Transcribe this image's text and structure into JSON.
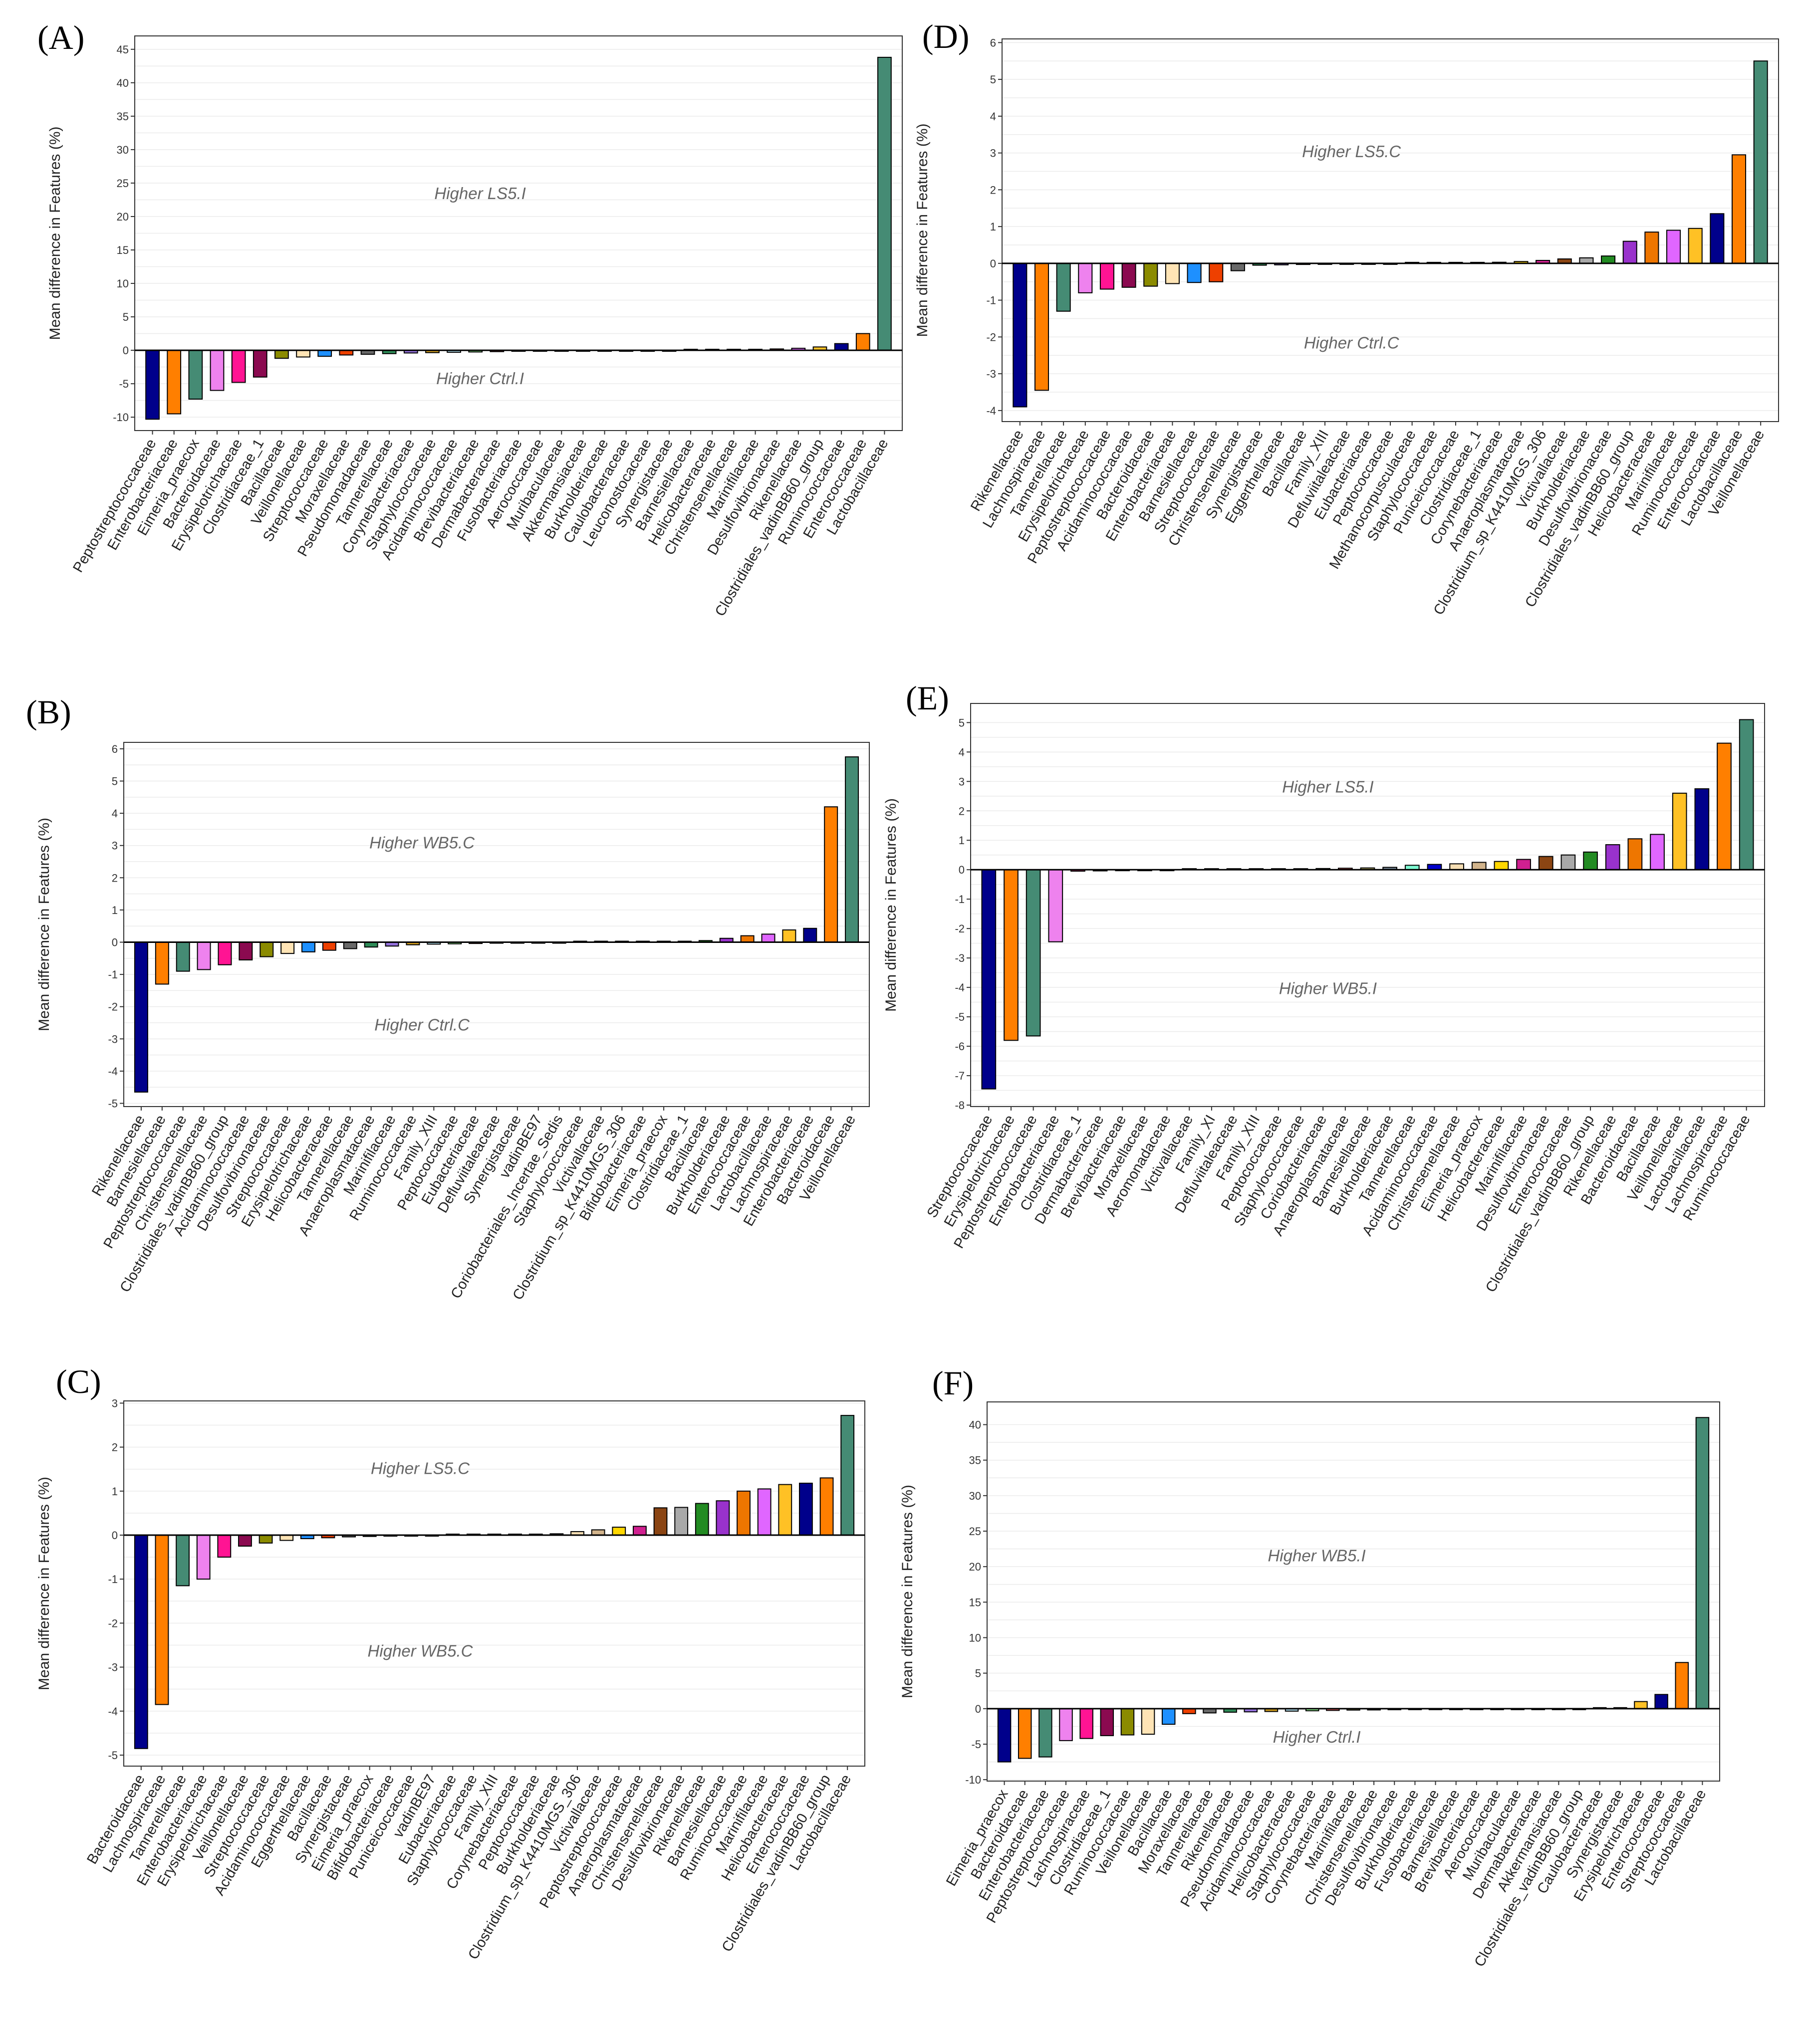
{
  "colors": [
    "#00008B",
    "#FF7F00",
    "#458B74",
    "#EE82EE",
    "#FF1493",
    "#8B0A50",
    "#8B8B00",
    "#FFE4B5",
    "#1E90FF",
    "#EE4000",
    "#696969",
    "#2E8B57",
    "#9370DB",
    "#CD9B1D",
    "#ADD8E6",
    "#98FB98",
    "#FF6A6A",
    "#BDB76B",
    "#708090",
    "#7FFFD4",
    "#0000CD",
    "#F5DEB3",
    "#D2B48C",
    "#FFD700",
    "#D02090",
    "#8B4513",
    "#A9A9A9",
    "#228B22",
    "#9932CC",
    "#EE7600",
    "#E066FF",
    "#FFC125"
  ],
  "chart_data": [
    {
      "id": "A",
      "type": "bar",
      "panel_label": "(A)",
      "ylabel": "Mean difference in Features (%)",
      "ylim": [
        -12,
        47
      ],
      "yticks": [
        -10,
        -5,
        0,
        5,
        10,
        15,
        20,
        25,
        30,
        35,
        40,
        45
      ],
      "upper_annotation": "Higher LS5.I",
      "lower_annotation": "Higher Ctrl.I",
      "categories": [
        "Peptostreptococcaceae",
        "Enterobacteriaceae",
        "Eimeria_praecox",
        "Bacteroidaceae",
        "Erysipelotrichaceae",
        "Clostridiaceae_1",
        "Bacillaceae",
        "Veillonellaceae",
        "Streptococcaceae",
        "Moraxellaceae",
        "Pseudomonadaceae",
        "Tannerellaceae",
        "Corynebacteriaceae",
        "Staphylococcaceae",
        "Acidaminococcaceae",
        "Brevibacteriaceae",
        "Dermabacteraceae",
        "Fusobacteriaceae",
        "Aerococcaceae",
        "Muribaculaceae",
        "Akkermansiaceae",
        "Burkholderiaceae",
        "Caulobacteraceae",
        "Leuconostocaceae",
        "Synergistaceae",
        "Barnesiellaceae",
        "Helicobacteraceae",
        "Christensenellaceae",
        "Marinifilaceae",
        "Desulfovibrionaceae",
        "Rikenellaceae",
        "Clostridiales_vadinBB60_group",
        "Ruminococcaceae",
        "Enterococcaceae",
        "Lactobacillaceae"
      ],
      "values": [
        -10.3,
        -9.5,
        -7.3,
        -6.0,
        -4.8,
        -4.0,
        -1.2,
        -1.0,
        -0.9,
        -0.7,
        -0.6,
        -0.5,
        -0.4,
        -0.35,
        -0.3,
        -0.25,
        -0.2,
        -0.15,
        -0.1,
        -0.08,
        -0.06,
        -0.05,
        -0.04,
        -0.03,
        -0.02,
        0.02,
        0.03,
        0.05,
        0.1,
        0.2,
        0.3,
        0.5,
        1.0,
        2.5,
        43.8
      ]
    },
    {
      "id": "B",
      "type": "bar",
      "panel_label": "(B)",
      "ylabel": "Mean difference in Features (%)",
      "ylim": [
        -5.1,
        6.2
      ],
      "yticks": [
        -5,
        -4,
        -3,
        -2,
        -1,
        0,
        1,
        2,
        3,
        4,
        5,
        6
      ],
      "upper_annotation": "Higher WB5.C",
      "lower_annotation": "Higher Ctrl.C",
      "categories": [
        "Rikenellaceae",
        "Barnesiellaceae",
        "Peptostreptococcaceae",
        "Christensenellaceae",
        "Clostridiales_vadinBB60_group",
        "Acidaminococcaceae",
        "Desulfovibrionaceae",
        "Streptococcaceae",
        "Erysipelotrichaceae",
        "Helicobacteraceae",
        "Tannerellaceae",
        "Anaeroplasmataceae",
        "Marinifilaceae",
        "Ruminococcaceae",
        "Family_XIII",
        "Peptococcaceae",
        "Eubacteriaceae",
        "Defluviitaleaceae",
        "Synergistaceae",
        "vadinBE97",
        "Coriobacteriales_Incertae_Sedis",
        "Staphylococcaceae",
        "Victivallaceae",
        "Clostridium_sp_K4410MGS_306",
        "Bifidobacteriaceae",
        "Eimeria_praecox",
        "Clostridiaceae_1",
        "Bacillaceae",
        "Burkholderiaceae",
        "Enterococcaceae",
        "Lactobacillaceae",
        "Lachnospiraceae",
        "Enterobacteriaceae",
        "Bacteroidaceae",
        "Veillonellaceae"
      ],
      "values": [
        -4.65,
        -1.3,
        -0.9,
        -0.85,
        -0.7,
        -0.55,
        -0.45,
        -0.35,
        -0.3,
        -0.25,
        -0.2,
        -0.15,
        -0.12,
        -0.08,
        -0.06,
        -0.05,
        -0.04,
        -0.03,
        -0.02,
        -0.01,
        -0.01,
        0.0,
        0.0,
        0.0,
        0.01,
        0.01,
        0.02,
        0.05,
        0.12,
        0.2,
        0.25,
        0.38,
        0.43,
        4.2,
        5.75
      ]
    },
    {
      "id": "C",
      "type": "bar",
      "panel_label": "(C)",
      "ylabel": "Mean difference in Features (%)",
      "ylim": [
        -5.25,
        3.05
      ],
      "yticks": [
        -5,
        -4,
        -3,
        -2,
        -1,
        0,
        1,
        2,
        3
      ],
      "upper_annotation": "Higher LS5.C",
      "lower_annotation": "Higher WB5.C",
      "categories": [
        "Bacteroidaceae",
        "Lachnospiraceae",
        "Tannerellaceae",
        "Enterobacteriaceae",
        "Erysipelotrichaceae",
        "Veillonellaceae",
        "Streptococcaceae",
        "Acidaminococcaceae",
        "Eggerthellaceae",
        "Bacillaceae",
        "Synergistaceae",
        "Eimeria_praecox",
        "Bifidobacteriaceae",
        "Puniceicoccaceae",
        "vadinBE97",
        "Eubacteriaceae",
        "Staphylococcaceae",
        "Family_XIII",
        "Corynebacteriaceae",
        "Peptococcaceae",
        "Burkholderiaceae",
        "Clostridium_sp_K4410MGS_306",
        "Victivallaceae",
        "Peptostreptococcaceae",
        "Anaeroplasmataceae",
        "Christensenellaceae",
        "Desulfovibrionaceae",
        "Rikenellaceae",
        "Barnesiellaceae",
        "Ruminococcaceae",
        "Marinifilaceae",
        "Helicobacteraceae",
        "Enterococcaceae",
        "Clostridiales_vadinBB60_group",
        "Lactobacillaceae"
      ],
      "values": [
        -4.85,
        -3.85,
        -1.15,
        -1.0,
        -0.5,
        -0.25,
        -0.18,
        -0.12,
        -0.08,
        -0.06,
        -0.04,
        -0.03,
        -0.02,
        -0.01,
        -0.01,
        0.0,
        0.0,
        0.0,
        0.01,
        0.02,
        0.03,
        0.08,
        0.12,
        0.18,
        0.2,
        0.62,
        0.63,
        0.72,
        0.78,
        1.0,
        1.05,
        1.15,
        1.18,
        1.3,
        2.72
      ]
    },
    {
      "id": "D",
      "type": "bar",
      "panel_label": "(D)",
      "ylabel": "Mean difference in Features (%)",
      "ylim": [
        -4.3,
        6.1
      ],
      "yticks": [
        -4,
        -3,
        -2,
        -1,
        0,
        1,
        2,
        3,
        4,
        5,
        6
      ],
      "upper_annotation": "Higher LS5.C",
      "lower_annotation": "Higher Ctrl.C",
      "categories": [
        "Rikenellaceae",
        "Lachnospiraceae",
        "Tannerellaceae",
        "Erysipelotrichaceae",
        "Peptostreptococcaceae",
        "Acidaminococcaceae",
        "Bacteroidaceae",
        "Enterobacteriaceae",
        "Barnesiellaceae",
        "Streptococcaceae",
        "Christensenellaceae",
        "Synergistaceae",
        "Eggerthellaceae",
        "Bacillaceae",
        "Family_XIII",
        "Defluviitaleaceae",
        "Eubacteriaceae",
        "Peptococcaceae",
        "Methanocorpusculaceae",
        "Staphylococcaceae",
        "Puniceicoccaceae",
        "Clostridiaceae_1",
        "Corynebacteriaceae",
        "Anaeroplasmataceae",
        "Clostridium_sp_K4410MGS_306",
        "Victivallaceae",
        "Burkholderiaceae",
        "Desulfovibrionaceae",
        "Clostridiales_vadinBB60_group",
        "Helicobacteraceae",
        "Marinifilaceae",
        "Ruminococcaceae",
        "Enterococcaceae",
        "Lactobacillaceae",
        "Veillonellaceae"
      ],
      "values": [
        -3.9,
        -3.45,
        -1.3,
        -0.8,
        -0.7,
        -0.65,
        -0.62,
        -0.55,
        -0.52,
        -0.5,
        -0.2,
        -0.05,
        -0.04,
        -0.03,
        -0.02,
        -0.02,
        -0.01,
        -0.01,
        0.0,
        0.0,
        0.01,
        0.02,
        0.03,
        0.05,
        0.08,
        0.12,
        0.15,
        0.2,
        0.6,
        0.85,
        0.9,
        0.95,
        1.35,
        2.95,
        5.5
      ]
    },
    {
      "id": "E",
      "type": "bar",
      "panel_label": "(E)",
      "ylabel": "Mean difference in Features (%)",
      "ylim": [
        -8.05,
        5.65
      ],
      "yticks": [
        -8,
        -7,
        -6,
        -5,
        -4,
        -3,
        -2,
        -1,
        0,
        1,
        2,
        3,
        4,
        5
      ],
      "upper_annotation": "Higher LS5.I",
      "lower_annotation": "Higher WB5.I",
      "categories": [
        "Streptococcaceae",
        "Erysipelotrichaceae",
        "Peptostreptococcaceae",
        "Enterobacteriaceae",
        "Clostridiaceae_1",
        "Dermabacteraceae",
        "Brevibacteriaceae",
        "Moraxellaceae",
        "Aeromonadaceae",
        "Victivallaceae",
        "Family_XI",
        "Defluviitaleaceae",
        "Family_XIII",
        "Peptococcaceae",
        "Staphylococcaceae",
        "Coriobacteriaceae",
        "Anaeroplasmataceae",
        "Barnesiellaceae",
        "Burkholderiaceae",
        "Tannerellaceae",
        "Acidaminococcaceae",
        "Christensenellaceae",
        "Eimeria_praecox",
        "Helicobacteraceae",
        "Marinifilaceae",
        "Desulfovibrionaceae",
        "Enterococcaceae",
        "Clostridiales_vadinBB60_group",
        "Rikenellaceae",
        "Bacteroidaceae",
        "Bacillaceae",
        "Veillonellaceae",
        "Lactobacillaceae",
        "Lachnospiraceae",
        "Ruminococcaceae"
      ],
      "values": [
        -7.45,
        -5.8,
        -5.65,
        -2.45,
        -0.05,
        -0.04,
        -0.03,
        -0.02,
        -0.01,
        0.0,
        0.0,
        0.0,
        0.01,
        0.02,
        0.03,
        0.04,
        0.05,
        0.06,
        0.08,
        0.15,
        0.18,
        0.2,
        0.25,
        0.28,
        0.35,
        0.45,
        0.5,
        0.6,
        0.85,
        1.05,
        1.2,
        2.6,
        2.75,
        4.3,
        5.1
      ]
    },
    {
      "id": "F",
      "type": "bar",
      "panel_label": "(F)",
      "ylabel": "Mean difference in Features (%)",
      "ylim": [
        -10.2,
        43.2
      ],
      "yticks": [
        -10,
        -5,
        0,
        5,
        10,
        15,
        20,
        25,
        30,
        35,
        40
      ],
      "upper_annotation": "Higher WB5.I",
      "lower_annotation": "Higher Ctrl.I",
      "categories": [
        "Eimeria_praecox",
        "Bacteroidaceae",
        "Enterobacteriaceae",
        "Peptostreptococcaceae",
        "Lachnospiraceae",
        "Clostridiaceae_1",
        "Ruminococcaceae",
        "Veillonellaceae",
        "Bacillaceae",
        "Moraxellaceae",
        "Tannerellaceae",
        "Rikenellaceae",
        "Pseudomonadaceae",
        "Acidaminococcaceae",
        "Helicobacteraceae",
        "Staphylococcaceae",
        "Corynebacteriaceae",
        "Marinifilaceae",
        "Christensenellaceae",
        "Desulfovibrionaceae",
        "Burkholderiaceae",
        "Fusobacteriaceae",
        "Barnesiellaceae",
        "Brevibacteriaceae",
        "Aerococcaceae",
        "Muribaculaceae",
        "Dermabacteraceae",
        "Akkermansiaceae",
        "Clostridiales_vadinBB60_group",
        "Caulobacteraceae",
        "Synergistaceae",
        "Erysipelotrichaceae",
        "Enterococcaceae",
        "Streptococcaceae",
        "Lactobacillaceae"
      ],
      "values": [
        -7.5,
        -7.0,
        -6.8,
        -4.5,
        -4.2,
        -3.8,
        -3.7,
        -3.6,
        -2.2,
        -0.7,
        -0.6,
        -0.5,
        -0.45,
        -0.4,
        -0.35,
        -0.3,
        -0.25,
        -0.2,
        -0.18,
        -0.15,
        -0.12,
        -0.1,
        -0.08,
        -0.06,
        -0.05,
        -0.04,
        -0.03,
        -0.02,
        -0.01,
        0.0,
        0.01,
        1.0,
        2.0,
        6.5,
        41.0
      ]
    }
  ]
}
